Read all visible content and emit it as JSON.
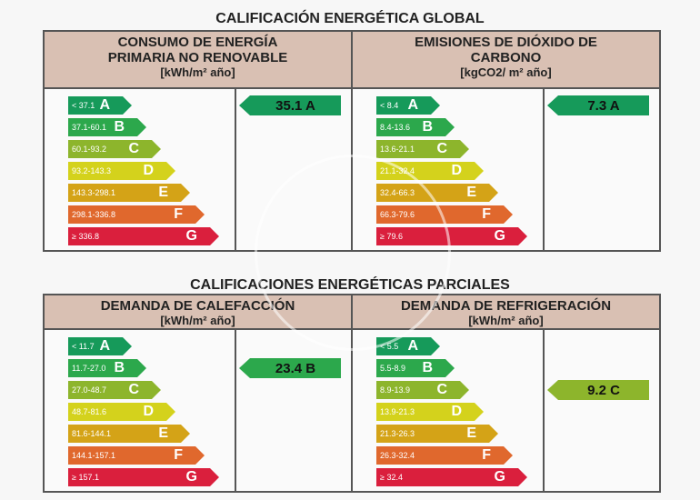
{
  "colors": {
    "A": "#169a5a",
    "B": "#2ca84c",
    "C": "#8db52c",
    "D": "#d4d21c",
    "E": "#d4a317",
    "F": "#e0682d",
    "G": "#da1f3d"
  },
  "letters": [
    "A",
    "B",
    "C",
    "D",
    "E",
    "F",
    "G"
  ],
  "global": {
    "title": "CALIFICACIÓN ENERGÉTICA GLOBAL",
    "panels": [
      {
        "head": [
          "CONSUMO DE ENERGÍA",
          "PRIMARIA NO RENOVABLE",
          "[kWh/m² año]"
        ],
        "ranges": [
          "< 37.1",
          "37.1-60.1",
          "60.1-93.2",
          "93.2-143.3",
          "143.3-298.1",
          "298.1-336.8",
          "≥ 336.8"
        ],
        "value": "35.1 A",
        "rating": "A"
      },
      {
        "head": [
          "EMISIONES DE DIÓXIDO DE",
          "CARBONO",
          "[kgCO2/ m² año]"
        ],
        "ranges": [
          "< 8.4",
          "8.4-13.6",
          "13.6-21.1",
          "21.1-32.4",
          "32.4-66.3",
          "66.3-79.6",
          "≥ 79.6"
        ],
        "value": "7.3 A",
        "rating": "A"
      }
    ]
  },
  "partial": {
    "title": "CALIFICACIONES ENERGÉTICAS PARCIALES",
    "panels": [
      {
        "head": [
          "DEMANDA DE CALEFACCIÓN",
          "[kWh/m² año]"
        ],
        "ranges": [
          "< 11.7",
          "11.7-27.0",
          "27.0-48.7",
          "48.7-81.6",
          "81.6-144.1",
          "144.1-157.1",
          "≥ 157.1"
        ],
        "value": "23.4 B",
        "rating": "B"
      },
      {
        "head": [
          "DEMANDA DE REFRIGERACIÓN",
          "[kWh/m² año]"
        ],
        "ranges": [
          "< 5.5",
          "5.5-8.9",
          "8.9-13.9",
          "13.9-21.3",
          "21.3-26.3",
          "26.3-32.4",
          "≥ 32.4"
        ],
        "value": "9.2 C",
        "rating": "C"
      }
    ]
  }
}
